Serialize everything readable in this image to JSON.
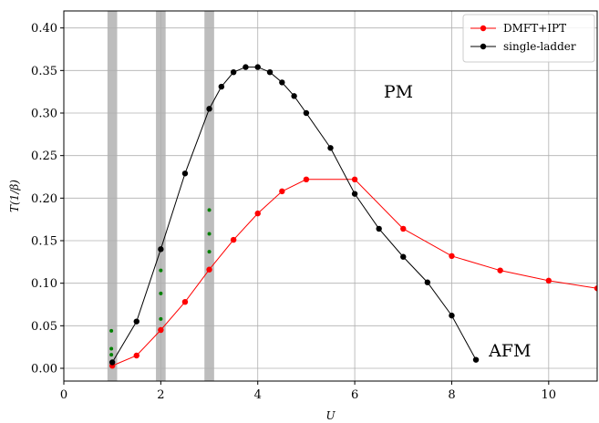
{
  "chart_data": {
    "type": "line",
    "xlabel": "U",
    "ylabel": "T(1/β)",
    "xlim": [
      0,
      11
    ],
    "ylim": [
      -0.015,
      0.42
    ],
    "xticks": [
      0,
      2,
      4,
      6,
      8,
      10
    ],
    "xtick_labels": [
      "0",
      "2",
      "4",
      "6",
      "8",
      "10"
    ],
    "yticks": [
      0.0,
      0.05,
      0.1,
      0.15,
      0.2,
      0.25,
      0.3,
      0.35,
      0.4
    ],
    "ytick_labels": [
      "0.00",
      "0.05",
      "0.10",
      "0.15",
      "0.20",
      "0.25",
      "0.30",
      "0.35",
      "0.40"
    ],
    "grid": true,
    "legend_position": "top-right",
    "shaded_bands": [
      {
        "x": [
          0.9,
          1.1
        ],
        "color": "#bdbdbd"
      },
      {
        "x": [
          1.9,
          2.1
        ],
        "color": "#bdbdbd"
      },
      {
        "x": [
          2.9,
          3.1
        ],
        "color": "#bdbdbd"
      }
    ],
    "series": [
      {
        "name": "DMFT+IPT",
        "color": "#ff0000",
        "x": [
          1,
          1.5,
          2,
          2.5,
          3,
          3.5,
          4,
          4.5,
          5,
          6,
          7,
          8,
          9,
          10,
          11
        ],
        "y": [
          0.003,
          0.015,
          0.045,
          0.078,
          0.116,
          0.151,
          0.182,
          0.208,
          0.222,
          0.222,
          0.164,
          0.132,
          0.115,
          0.103,
          0.094
        ]
      },
      {
        "name": "single-ladder",
        "color": "#000000",
        "x": [
          1,
          1.5,
          2,
          2.5,
          3,
          3.25,
          3.5,
          3.75,
          4,
          4.25,
          4.5,
          4.75,
          5,
          5.5,
          6,
          6.5,
          7,
          7.5,
          8,
          8.5
        ],
        "y": [
          0.007,
          0.055,
          0.14,
          0.229,
          0.305,
          0.331,
          0.348,
          0.354,
          0.354,
          0.348,
          0.336,
          0.32,
          0.3,
          0.259,
          0.205,
          0.164,
          0.131,
          0.101,
          0.062,
          0.01
        ]
      }
    ],
    "extra_points": {
      "color": "#008000",
      "points": [
        {
          "x": 0.98,
          "y": 0.044
        },
        {
          "x": 0.98,
          "y": 0.023
        },
        {
          "x": 0.98,
          "y": 0.016
        },
        {
          "x": 2.0,
          "y": 0.115
        },
        {
          "x": 2.0,
          "y": 0.088
        },
        {
          "x": 2.0,
          "y": 0.058
        },
        {
          "x": 3.0,
          "y": 0.186
        },
        {
          "x": 3.0,
          "y": 0.158
        },
        {
          "x": 3.0,
          "y": 0.137
        }
      ]
    },
    "annotations": [
      {
        "text": "PM",
        "x": 6.9,
        "y": 0.318
      },
      {
        "text": "AFM",
        "x": 9.2,
        "y": 0.014
      }
    ]
  }
}
